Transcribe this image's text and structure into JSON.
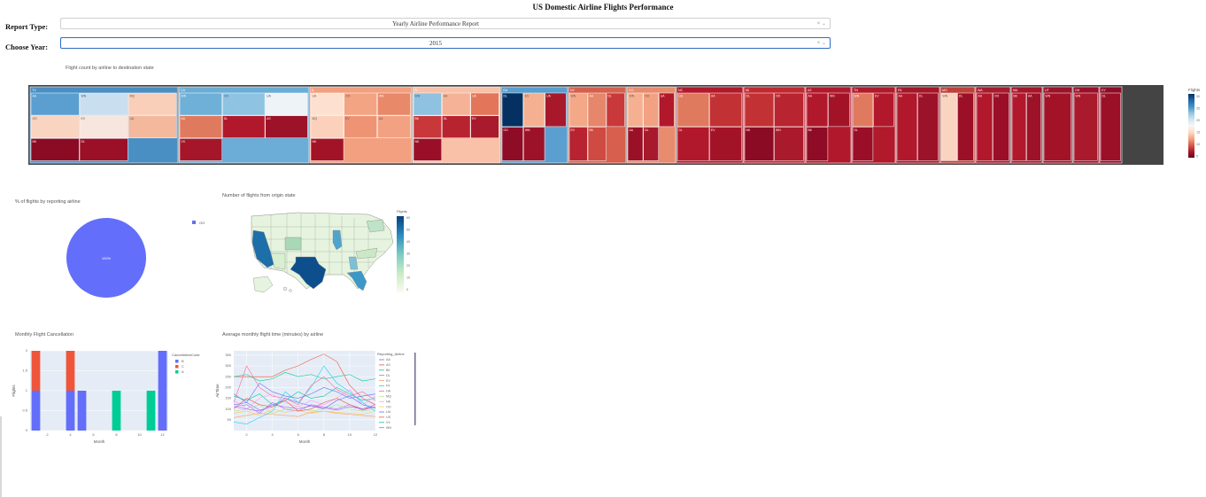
{
  "app": {
    "title": "US Domestic Airline Flights Performance"
  },
  "controls": {
    "report_type_label": "Report Type:",
    "report_type_value": "Yearly Airline Performance Report",
    "year_label": "Choose Year:",
    "year_value": "2015",
    "dropdown_arrows": "× ⌄"
  },
  "treemap": {
    "title": "Flight count by airline to destination state",
    "colorbar_title": "Flights",
    "colorscale": [
      "#053061",
      "#2166ac",
      "#4393c3",
      "#92c5de",
      "#d1e5f0",
      "#f7f7f7",
      "#fddbc7",
      "#f4a582",
      "#d6604d",
      "#b2182b",
      "#67001f"
    ],
    "colorbar_ticks": [
      "30",
      "25",
      "20",
      "15",
      "10",
      "5"
    ],
    "states": [
      {
        "label": "TX",
        "color": "#4a8fc4",
        "airlines": [
          {
            "label": "AA",
            "color": "#5a9fd0"
          },
          {
            "label": "WN",
            "color": "#c9dff0"
          },
          {
            "label": "MQ",
            "color": "#f9cfb9"
          },
          {
            "label": "OO",
            "color": "#f9d4c0"
          },
          {
            "label": "EV",
            "color": "#f7e6de"
          },
          {
            "label": "UA",
            "color": "#f4b89c"
          },
          {
            "label": "NK",
            "color": "#8b0a24"
          },
          {
            "label": "DL",
            "color": "#9b1027"
          }
        ]
      },
      {
        "label": "CA",
        "color": "#6badd6",
        "airlines": [
          {
            "label": "WN",
            "color": "#6fb0d8"
          },
          {
            "label": "OO",
            "color": "#8ec3e2"
          },
          {
            "label": "UA",
            "color": "#eef3f8"
          },
          {
            "label": "AA",
            "color": "#e07a5f"
          },
          {
            "label": "DL",
            "color": "#b2182b"
          },
          {
            "label": "AS",
            "color": "#9c1228"
          },
          {
            "label": "VX",
            "color": "#a5162a"
          }
        ]
      },
      {
        "label": "IL",
        "color": "#f2a07f",
        "airlines": [
          {
            "label": "UA",
            "color": "#fde0d0"
          },
          {
            "label": "OO",
            "color": "#f3a483"
          },
          {
            "label": "WN",
            "color": "#e8896a"
          },
          {
            "label": "MQ",
            "color": "#fbd1bb"
          },
          {
            "label": "EV",
            "color": "#ee9474"
          },
          {
            "label": "AA",
            "color": "#f2a283"
          },
          {
            "label": "NK",
            "color": "#a31328"
          }
        ]
      },
      {
        "label": "FL",
        "color": "#f8c1a8",
        "airlines": [
          {
            "label": "WN",
            "color": "#8fc2e0"
          },
          {
            "label": "AA",
            "color": "#f6b296"
          },
          {
            "label": "UA",
            "color": "#e3755a"
          },
          {
            "label": "B6",
            "color": "#c8373a"
          },
          {
            "label": "DL",
            "color": "#b82330"
          },
          {
            "label": "EV",
            "color": "#a91a2c"
          },
          {
            "label": "NK",
            "color": "#9a0f27"
          }
        ]
      },
      {
        "label": "GA",
        "color": "#5a9fd0",
        "airlines": [
          {
            "label": "DL",
            "color": "#053061"
          },
          {
            "label": "EV",
            "color": "#f4b090"
          },
          {
            "label": "UA",
            "color": "#a8182b"
          },
          {
            "label": "OO",
            "color": "#8e0c25"
          },
          {
            "label": "WN",
            "color": "#9c1228"
          }
        ]
      },
      {
        "label": "NY",
        "color": "#d6604d",
        "airlines": [
          {
            "label": "WN",
            "color": "#f3a887"
          },
          {
            "label": "AA",
            "color": "#e6866a"
          },
          {
            "label": "DL",
            "color": "#c9383a"
          },
          {
            "label": "EV",
            "color": "#b72330"
          },
          {
            "label": "B6",
            "color": "#cf4a43"
          }
        ]
      },
      {
        "label": "CO",
        "color": "#e88c6e",
        "airlines": [
          {
            "label": "WN",
            "color": "#f4b090"
          },
          {
            "label": "OO",
            "color": "#f2a283"
          },
          {
            "label": "UA",
            "color": "#b2182b"
          },
          {
            "label": "AA",
            "color": "#9a1027"
          },
          {
            "label": "DL",
            "color": "#a71a2d"
          }
        ]
      },
      {
        "label": "NC",
        "color": "#b2182b",
        "airlines": [
          {
            "label": "US",
            "color": "#e07a5f"
          },
          {
            "label": "AA",
            "color": "#c23234"
          },
          {
            "label": "DL",
            "color": "#b2182b"
          },
          {
            "label": "EV",
            "color": "#a31328"
          }
        ]
      },
      {
        "label": "MI",
        "color": "#c2282f",
        "airlines": [
          {
            "label": "DL",
            "color": "#c23234"
          },
          {
            "label": "OO",
            "color": "#b8242f"
          },
          {
            "label": "NK",
            "color": "#8b0a24"
          },
          {
            "label": "WN",
            "color": "#a81a2c"
          }
        ]
      },
      {
        "label": "AZ",
        "color": "#b2182b",
        "airlines": [
          {
            "label": "AA",
            "color": "#b2182b"
          },
          {
            "label": "WN",
            "color": "#a31328"
          },
          {
            "label": "B6",
            "color": "#8e0c25"
          }
        ]
      },
      {
        "label": "TN",
        "color": "#b01a2b",
        "airlines": [
          {
            "label": "WN",
            "color": "#e07a5f"
          },
          {
            "label": "EV",
            "color": "#b2182b"
          },
          {
            "label": "DL",
            "color": "#9a0f27"
          }
        ]
      },
      {
        "label": "PA",
        "color": "#a51628",
        "airlines": [
          {
            "label": "AA",
            "color": "#b2182b"
          },
          {
            "label": "DL",
            "color": "#9c1228"
          }
        ]
      },
      {
        "label": "MO",
        "color": "#c04038",
        "airlines": [
          {
            "label": "WN",
            "color": "#f9d4c0"
          },
          {
            "label": "DL",
            "color": "#9b1027"
          }
        ]
      },
      {
        "label": "WA",
        "color": "#a81a2c",
        "airlines": [
          {
            "label": "AS",
            "color": "#b2182b"
          },
          {
            "label": "OO",
            "color": "#9a0f27"
          }
        ]
      },
      {
        "label": "MA",
        "color": "#a51628",
        "airlines": [
          {
            "label": "B6",
            "color": "#b2182b"
          },
          {
            "label": "AA",
            "color": "#9c1228"
          }
        ]
      },
      {
        "label": "UT",
        "color": "#9c1228",
        "airlines": [
          {
            "label": "WN",
            "color": "#a31328"
          }
        ]
      },
      {
        "label": "OH",
        "color": "#9a0f27",
        "airlines": [
          {
            "label": "WN",
            "color": "#a81a2c"
          }
        ]
      },
      {
        "label": "KY",
        "color": "#8e0c25",
        "airlines": [
          {
            "label": "DL",
            "color": "#9b1027"
          }
        ]
      }
    ]
  },
  "pie": {
    "title": "% of flights by reporting airline",
    "slice_color": "#636efa",
    "slice_label": "100%",
    "legend": [
      {
        "label": "OO",
        "color": "#636efa"
      }
    ]
  },
  "map": {
    "title": "Number of flights from origin state",
    "colorbar_title": "Flights",
    "colorbar_ticks": [
      "60",
      "50",
      "40",
      "30",
      "20",
      "10",
      "0"
    ],
    "colorscale": [
      "#f7fcf0",
      "#ccebc5",
      "#7bccc4",
      "#2b8cbe",
      "#084081"
    ]
  },
  "cancel": {
    "title": "Monthly Flight Cancellation",
    "xlabel": "Month",
    "ylabel": "Flights",
    "legend_title": "CancellationCode",
    "legend": [
      {
        "label": "B",
        "color": "#636efa"
      },
      {
        "label": "C",
        "color": "#ef553b"
      },
      {
        "label": "A",
        "color": "#00cc96"
      }
    ],
    "yticks": [
      "2",
      "1.5",
      "1",
      "0.5",
      "0"
    ],
    "xticks": [
      "2",
      "4",
      "6",
      "8",
      "10",
      "12"
    ]
  },
  "flighttime": {
    "title": "Average monthly flight time (minutes) by airline",
    "xlabel": "Month",
    "ylabel": "AirTime",
    "legend_title": "Reporting_Airline",
    "yticks": [
      "350",
      "300",
      "250",
      "200",
      "150",
      "100",
      "50"
    ],
    "xticks": [
      "2",
      "4",
      "6",
      "8",
      "10",
      "12"
    ]
  },
  "chart_data": [
    {
      "type": "bar",
      "title": "Monthly Flight Cancellation",
      "xlabel": "Month",
      "ylabel": "Flights",
      "ylim": [
        0,
        2
      ],
      "categories": [
        1,
        2,
        3,
        4,
        5,
        6,
        7,
        8,
        9,
        10,
        11,
        12
      ],
      "stacked": true,
      "series": [
        {
          "name": "B",
          "color": "#636efa",
          "values": [
            1,
            0,
            0,
            1,
            1,
            0,
            0,
            0,
            0,
            0,
            0,
            2
          ]
        },
        {
          "name": "C",
          "color": "#ef553b",
          "values": [
            1,
            0,
            0,
            1,
            0,
            0,
            0,
            0,
            0,
            0,
            0,
            0
          ]
        },
        {
          "name": "A",
          "color": "#00cc96",
          "values": [
            0,
            0,
            0,
            0,
            0,
            0,
            0,
            1,
            0,
            0,
            1,
            0
          ]
        }
      ]
    },
    {
      "type": "line",
      "title": "Average monthly flight time (minutes) by airline",
      "xlabel": "Month",
      "ylabel": "AirTime",
      "x": [
        1,
        2,
        3,
        4,
        5,
        6,
        7,
        8,
        9,
        10,
        11,
        12
      ],
      "ylim": [
        0,
        370
      ],
      "series": [
        {
          "name": "AA",
          "color": "#636efa",
          "values": [
            120,
            130,
            95,
            110,
            150,
            130,
            115,
            100,
            140,
            160,
            120,
            105
          ]
        },
        {
          "name": "AS",
          "color": "#ef553b",
          "values": [
            250,
            250,
            250,
            250,
            280,
            300,
            330,
            355,
            320,
            210,
            150,
            120
          ]
        },
        {
          "name": "B6",
          "color": "#00cc96",
          "values": [
            160,
            140,
            170,
            120,
            140,
            180,
            150,
            160,
            200,
            170,
            140,
            150
          ]
        },
        {
          "name": "DL",
          "color": "#ab63fa",
          "values": [
            110,
            120,
            80,
            130,
            100,
            90,
            120,
            110,
            100,
            120,
            95,
            110
          ]
        },
        {
          "name": "EV",
          "color": "#ffa15a",
          "values": [
            60,
            70,
            80,
            75,
            70,
            65,
            85,
            90,
            80,
            75,
            70,
            65
          ]
        },
        {
          "name": "F9",
          "color": "#19d3f3",
          "values": [
            40,
            30,
            60,
            90,
            180,
            130,
            200,
            300,
            220,
            180,
            130,
            90
          ]
        },
        {
          "name": "HA",
          "color": "#ff6692",
          "values": [
            130,
            300,
            200,
            160,
            150,
            120,
            210,
            250,
            190,
            160,
            180,
            140
          ]
        },
        {
          "name": "MQ",
          "color": "#b6e880",
          "values": [
            90,
            100,
            120,
            80,
            100,
            110,
            90,
            100,
            120,
            100,
            90,
            100
          ]
        },
        {
          "name": "NK",
          "color": "#ff97ff",
          "values": [
            140,
            100,
            150,
            170,
            130,
            110,
            140,
            120,
            150,
            190,
            120,
            160
          ]
        },
        {
          "name": "OO",
          "color": "#fecb52",
          "values": [
            80,
            90,
            70,
            100,
            85,
            95,
            80,
            90,
            85,
            80,
            75,
            90
          ]
        },
        {
          "name": "UA",
          "color": "#636efa",
          "values": [
            170,
            130,
            220,
            180,
            160,
            150,
            170,
            200,
            180,
            150,
            160,
            170
          ]
        },
        {
          "name": "US",
          "color": "#ef553b",
          "values": [
            100,
            150,
            120,
            110,
            140,
            90,
            100,
            130,
            150,
            120,
            100,
            110
          ]
        },
        {
          "name": "VX",
          "color": "#00cc96",
          "values": [
            250,
            260,
            230,
            240,
            270,
            250,
            260,
            240,
            250,
            260,
            230,
            240
          ]
        },
        {
          "name": "WN",
          "color": "#ab63fa",
          "values": [
            110,
            100,
            90,
            120,
            110,
            100,
            115,
            105,
            95,
            110,
            100,
            120
          ]
        }
      ]
    }
  ]
}
